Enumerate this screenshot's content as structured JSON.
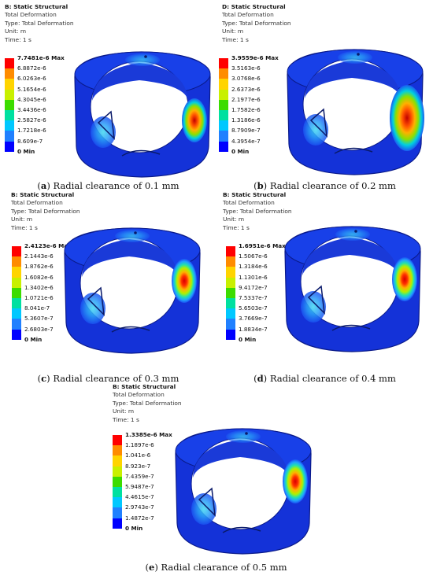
{
  "colors": {
    "scale": [
      "#ff0000",
      "#ff8c00",
      "#ffd400",
      "#c8f000",
      "#3cdc00",
      "#00e0a0",
      "#00c8ff",
      "#2080ff",
      "#0000ff"
    ],
    "ring_base": "#1432d8",
    "ring_dark": "#0a1e9c"
  },
  "panels": [
    {
      "id": "a",
      "header": {
        "title": "B: Static Structural",
        "line1": "Total Deformation",
        "line2": "Type: Total Deformation",
        "line3": "Unit: m",
        "line4": "Time: 1 s"
      },
      "legend": {
        "max": "7.7481e-6 Max",
        "ticks": [
          "6.8872e-6",
          "6.0263e-6",
          "5.1654e-6",
          "4.3045e-6",
          "3.4436e-6",
          "2.5827e-6",
          "1.7218e-6",
          "8.609e-7"
        ],
        "min": "0 Min"
      },
      "caption": {
        "letter": "a",
        "text": "Radial clearance of 0.1 mm"
      }
    },
    {
      "id": "b",
      "header": {
        "title": "D: Static Structural",
        "line1": "Total Deformation",
        "line2": "Type: Total Deformation",
        "line3": "Unit: m",
        "line4": "Time: 1 s"
      },
      "legend": {
        "max": "3.9559e-6 Max",
        "ticks": [
          "3.5163e-6",
          "3.0768e-6",
          "2.6373e-6",
          "2.1977e-6",
          "1.7582e-6",
          "1.3186e-6",
          "8.7909e-7",
          "4.3954e-7"
        ],
        "min": "0 Min"
      },
      "caption": {
        "letter": "b",
        "text": "Radial clearance of 0.2 mm"
      }
    },
    {
      "id": "c",
      "header": {
        "title": "B: Static Structural",
        "line1": "Total Deformation",
        "line2": "Type: Total Deformation",
        "line3": "Unit: m",
        "line4": "Time: 1 s"
      },
      "legend": {
        "max": "2.4123e-6 Max",
        "ticks": [
          "2.1443e-6",
          "1.8762e-6",
          "1.6082e-6",
          "1.3402e-6",
          "1.0721e-6",
          "8.041e-7",
          "5.3607e-7",
          "2.6803e-7"
        ],
        "min": "0 Min"
      },
      "caption": {
        "letter": "c",
        "text": "Radial clearance of 0.3 mm"
      }
    },
    {
      "id": "d",
      "header": {
        "title": "B: Static Structural",
        "line1": "Total Deformation",
        "line2": "Type: Total Deformation",
        "line3": "Unit: m",
        "line4": "Time: 1 s"
      },
      "legend": {
        "max": "1.6951e-6 Max",
        "ticks": [
          "1.5067e-6",
          "1.3184e-6",
          "1.1301e-6",
          "9.4172e-7",
          "7.5337e-7",
          "5.6503e-7",
          "3.7669e-7",
          "1.8834e-7"
        ],
        "min": "0 Min"
      },
      "caption": {
        "letter": "d",
        "text": "Radial clearance of 0.4 mm"
      }
    },
    {
      "id": "e",
      "header": {
        "title": "B: Static Structural",
        "line1": "Total Deformation",
        "line2": "Type: Total Deformation",
        "line3": "Unit: m",
        "line4": "Time: 1 s"
      },
      "legend": {
        "max": "1.3385e-6 Max",
        "ticks": [
          "1.1897e-6",
          "1.041e-6",
          "8.923e-7",
          "7.4359e-7",
          "5.9487e-7",
          "4.4615e-7",
          "2.9743e-7",
          "1.4872e-7"
        ],
        "min": "0 Min"
      },
      "caption": {
        "letter": "e",
        "text": "Radial clearance of 0.5 mm"
      }
    }
  ]
}
